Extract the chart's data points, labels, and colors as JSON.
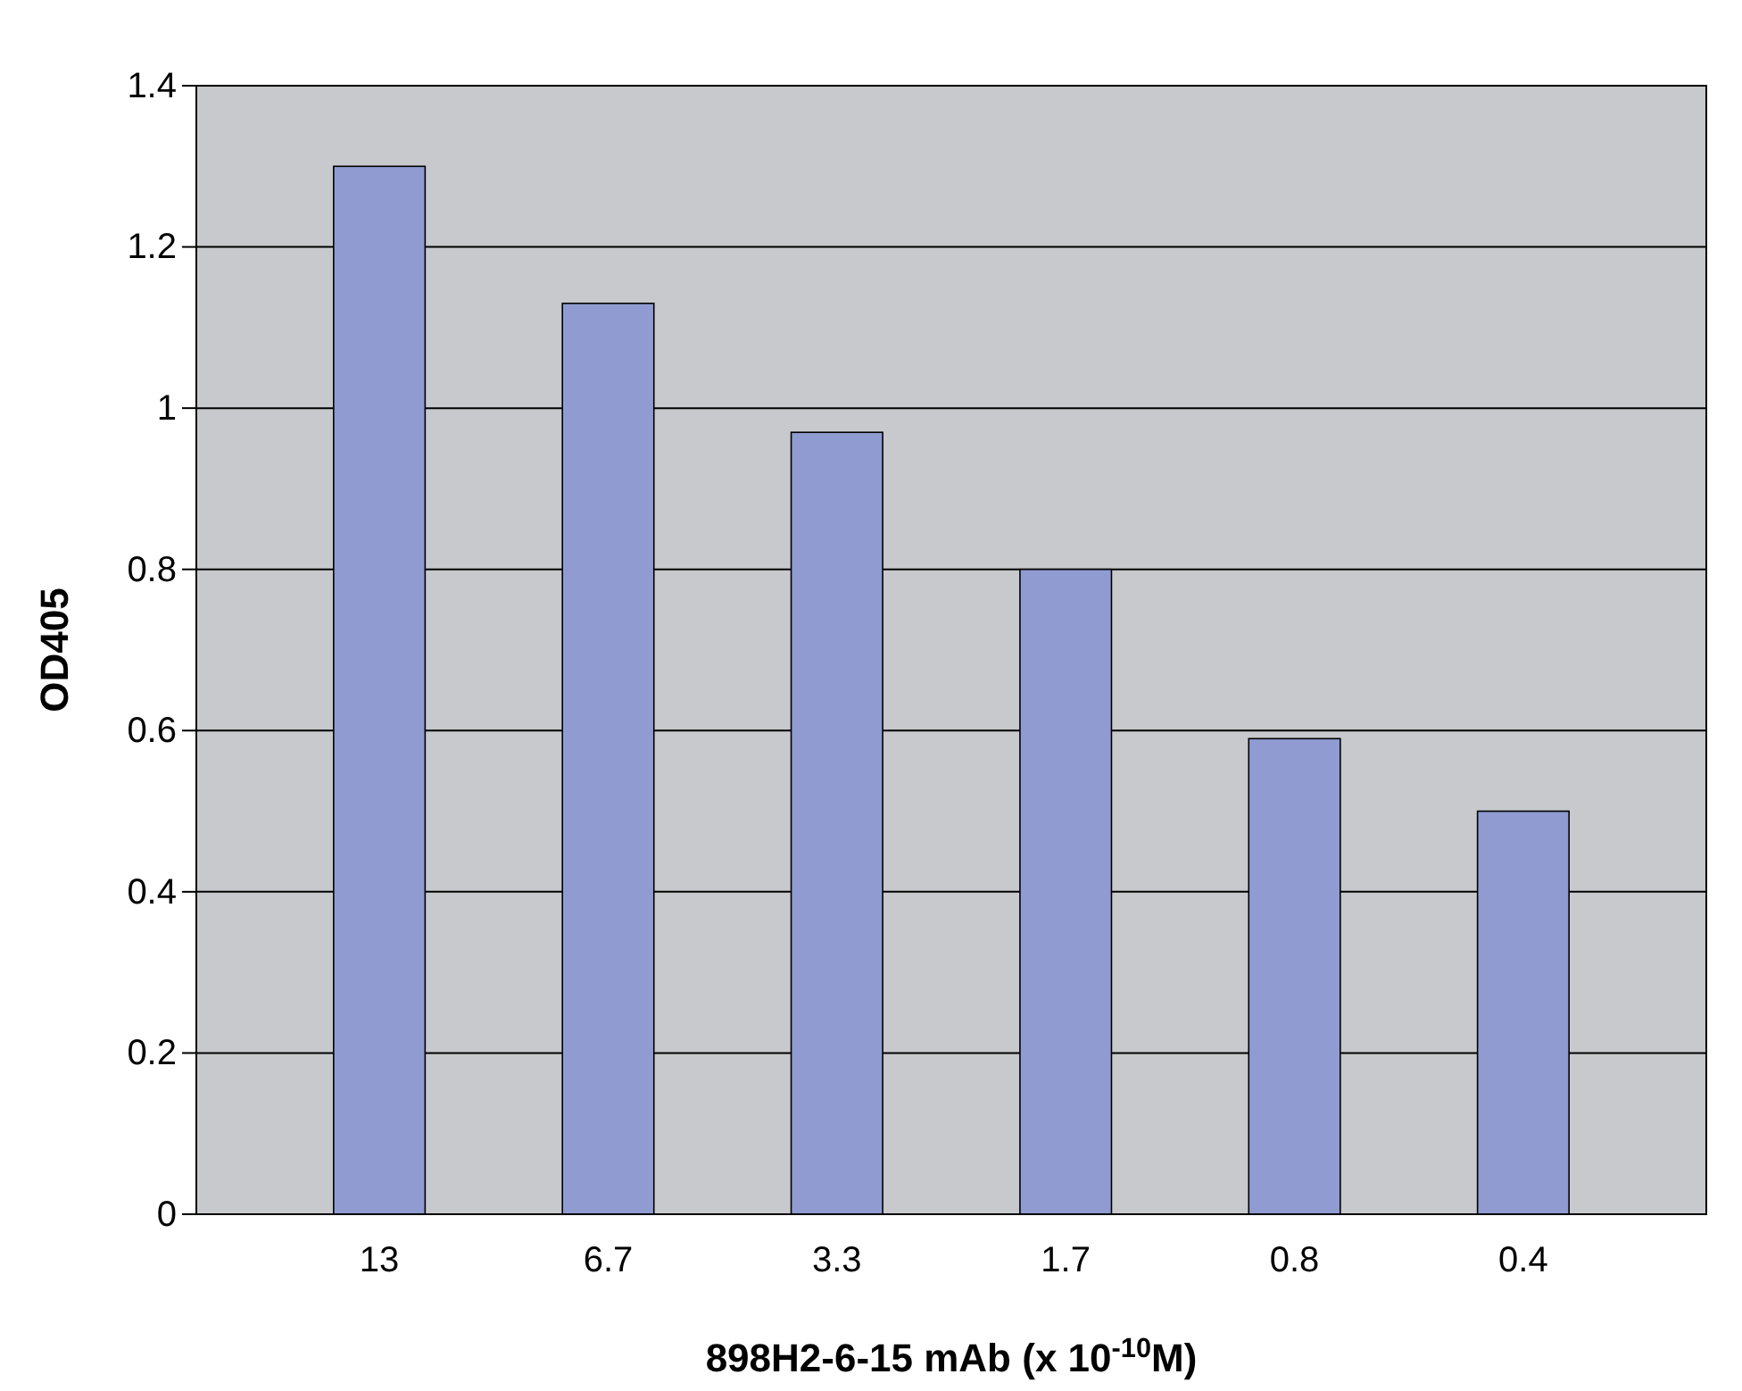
{
  "chart_data": {
    "type": "bar",
    "xlabel": "898H2-6-15 mAb (x 10$^{-10}$M)",
    "ylabel": "OD405",
    "categories": [
      "13",
      "6.7",
      "3.3",
      "1.7",
      "0.8",
      "0.4"
    ],
    "values": [
      1.3,
      1.13,
      0.97,
      0.8,
      0.59,
      0.5
    ],
    "color": "#8f9bd1",
    "ylim": [
      0,
      1.4
    ],
    "yticks": [
      0,
      {
        "value": 0.2,
        "label": "0.2"
      },
      {
        "value": 0.4,
        "label": "0.4"
      },
      {
        "value": 0.6,
        "label": "0.6"
      },
      {
        "value": 0.8,
        "label": "0.8"
      },
      1,
      {
        "value": 1.2,
        "label": "1.2"
      },
      {
        "value": 1.4,
        "label": "1.4"
      }
    ],
    "grid": "y"
  }
}
